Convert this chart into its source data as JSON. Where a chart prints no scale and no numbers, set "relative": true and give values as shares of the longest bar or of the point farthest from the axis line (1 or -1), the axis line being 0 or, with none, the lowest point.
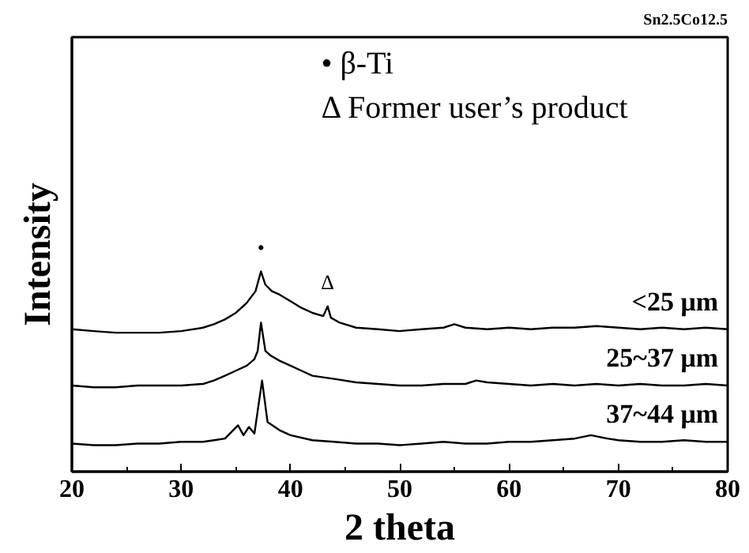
{
  "chart_data": {
    "type": "line",
    "title": "Sn2.5Co12.5",
    "xlabel": "2 theta",
    "ylabel": "Intensity",
    "relative": true,
    "xlim": [
      20,
      80
    ],
    "xticks": [
      20,
      30,
      40,
      50,
      60,
      70,
      80
    ],
    "tick_labels": "x",
    "grid": false,
    "marker": "none",
    "line_style": "solid",
    "annotations": [
      "• β-Ti",
      "Δ Former user’s product",
      {
        "text": "•",
        "x": 37.3,
        "y": 1.0
      },
      {
        "text": "Δ",
        "x": 43.4,
        "y": 0.826
      }
    ],
    "series": [
      {
        "name": "<25 μm",
        "color": "#000000",
        "x": [
          20,
          22,
          24,
          26,
          28,
          30,
          32,
          33,
          34,
          35,
          36,
          36.8,
          37.3,
          37.7,
          38.3,
          39,
          40,
          41,
          42,
          43,
          43.4,
          43.7,
          44.5,
          46,
          48,
          50,
          52,
          54,
          55,
          56,
          58,
          60,
          62,
          64,
          66,
          68,
          70,
          72,
          74,
          76,
          78,
          80
        ],
        "values": [
          0.711,
          0.702,
          0.694,
          0.694,
          0.694,
          0.702,
          0.719,
          0.736,
          0.76,
          0.793,
          0.843,
          0.901,
          1.0,
          0.934,
          0.901,
          0.884,
          0.851,
          0.818,
          0.793,
          0.777,
          0.826,
          0.769,
          0.744,
          0.719,
          0.711,
          0.702,
          0.711,
          0.719,
          0.736,
          0.719,
          0.711,
          0.719,
          0.711,
          0.719,
          0.719,
          0.727,
          0.719,
          0.711,
          0.719,
          0.711,
          0.719,
          0.711
        ]
      },
      {
        "name": "25~37 μm",
        "color": "#000000",
        "x": [
          20,
          22,
          24,
          26,
          28,
          30,
          32,
          33,
          34,
          35,
          36,
          36.7,
          37.0,
          37.3,
          37.7,
          38.2,
          39,
          40,
          41,
          42,
          44,
          46,
          48,
          50,
          52,
          54,
          56,
          57,
          58,
          60,
          62,
          64,
          66,
          68,
          70,
          72,
          74,
          76,
          78,
          80
        ],
        "values": [
          0.43,
          0.421,
          0.421,
          0.43,
          0.43,
          0.43,
          0.438,
          0.455,
          0.479,
          0.504,
          0.529,
          0.562,
          0.603,
          0.744,
          0.603,
          0.579,
          0.554,
          0.529,
          0.504,
          0.479,
          0.463,
          0.446,
          0.438,
          0.43,
          0.43,
          0.438,
          0.438,
          0.455,
          0.446,
          0.438,
          0.43,
          0.438,
          0.43,
          0.438,
          0.43,
          0.438,
          0.43,
          0.43,
          0.438,
          0.43
        ]
      },
      {
        "name": "37~44 μm",
        "color": "#000000",
        "x": [
          20,
          22,
          24,
          26,
          28,
          30,
          32,
          33,
          34,
          35.2,
          35.7,
          36.2,
          36.7,
          37.4,
          37.9,
          39,
          40,
          42,
          44,
          46,
          48,
          50,
          52,
          54,
          56,
          58,
          60,
          62,
          64,
          66,
          67.5,
          69,
          70,
          72,
          74,
          76,
          78,
          80
        ],
        "values": [
          0.14,
          0.132,
          0.132,
          0.14,
          0.14,
          0.149,
          0.149,
          0.157,
          0.165,
          0.231,
          0.182,
          0.223,
          0.19,
          0.455,
          0.248,
          0.207,
          0.182,
          0.157,
          0.149,
          0.14,
          0.14,
          0.132,
          0.14,
          0.149,
          0.14,
          0.14,
          0.149,
          0.149,
          0.157,
          0.165,
          0.182,
          0.165,
          0.157,
          0.149,
          0.149,
          0.157,
          0.149,
          0.149
        ]
      }
    ]
  }
}
